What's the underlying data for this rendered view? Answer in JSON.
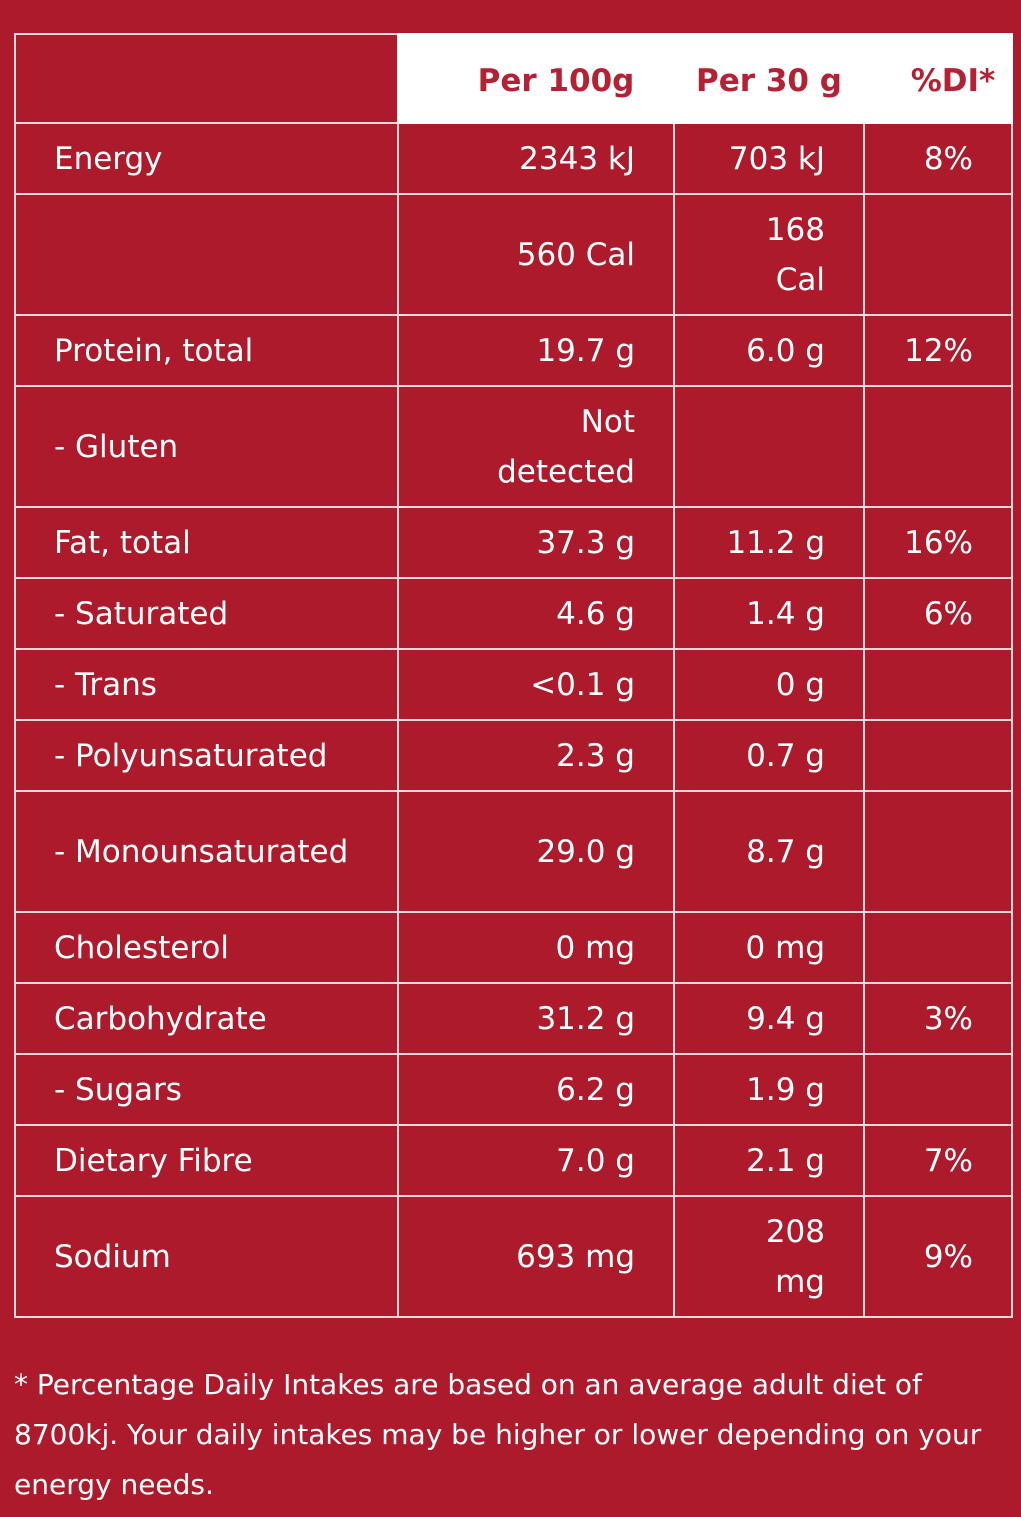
{
  "table": {
    "headers": {
      "per_100g": "Per 100g",
      "per_30g": "Per 30 g",
      "di": "%DI*"
    },
    "rows": [
      {
        "name": "Energy",
        "per_100g": "2343 kJ",
        "per_30g": "703 kJ",
        "di": "8%"
      },
      {
        "name": "",
        "per_100g": "560 Cal",
        "per_30g": "168 Cal",
        "di": ""
      },
      {
        "name": "Protein, total",
        "per_100g": "19.7 g",
        "per_30g": "6.0 g",
        "di": "12%"
      },
      {
        "name": "- Gluten",
        "per_100g": "Not detected",
        "per_30g": "",
        "di": ""
      },
      {
        "name": "Fat, total",
        "per_100g": "37.3 g",
        "per_30g": "11.2 g",
        "di": "16%"
      },
      {
        "name": "- Saturated",
        "per_100g": "4.6 g",
        "per_30g": "1.4 g",
        "di": "6%"
      },
      {
        "name": "- Trans",
        "per_100g": "<0.1 g",
        "per_30g": "0 g",
        "di": ""
      },
      {
        "name": "- Polyunsaturated",
        "per_100g": "2.3 g",
        "per_30g": "0.7 g",
        "di": ""
      },
      {
        "name": "- Monounsaturated",
        "per_100g": "29.0 g",
        "per_30g": "8.7 g",
        "di": ""
      },
      {
        "name": "Cholesterol",
        "per_100g": "0 mg",
        "per_30g": "0 mg",
        "di": ""
      },
      {
        "name": "Carbohydrate",
        "per_100g": "31.2 g",
        "per_30g": "9.4 g",
        "di": "3%"
      },
      {
        "name": "- Sugars",
        "per_100g": "6.2 g",
        "per_30g": "1.9 g",
        "di": ""
      },
      {
        "name": "Dietary Fibre",
        "per_100g": "7.0 g",
        "per_30g": "2.1 g",
        "di": "7%"
      },
      {
        "name": "Sodium",
        "per_100g": "693 mg",
        "per_30g": "208 mg",
        "di": "9%"
      }
    ]
  },
  "footnote": "* Percentage Daily Intakes are based on an average adult diet of 8700kj. Your daily intakes may be higher or lower depending on your energy needs.",
  "colors": {
    "background": "#ad1a2c",
    "header_text": "#b52134",
    "header_background": "#ffffff",
    "grid_lines": "#f0d7da"
  }
}
